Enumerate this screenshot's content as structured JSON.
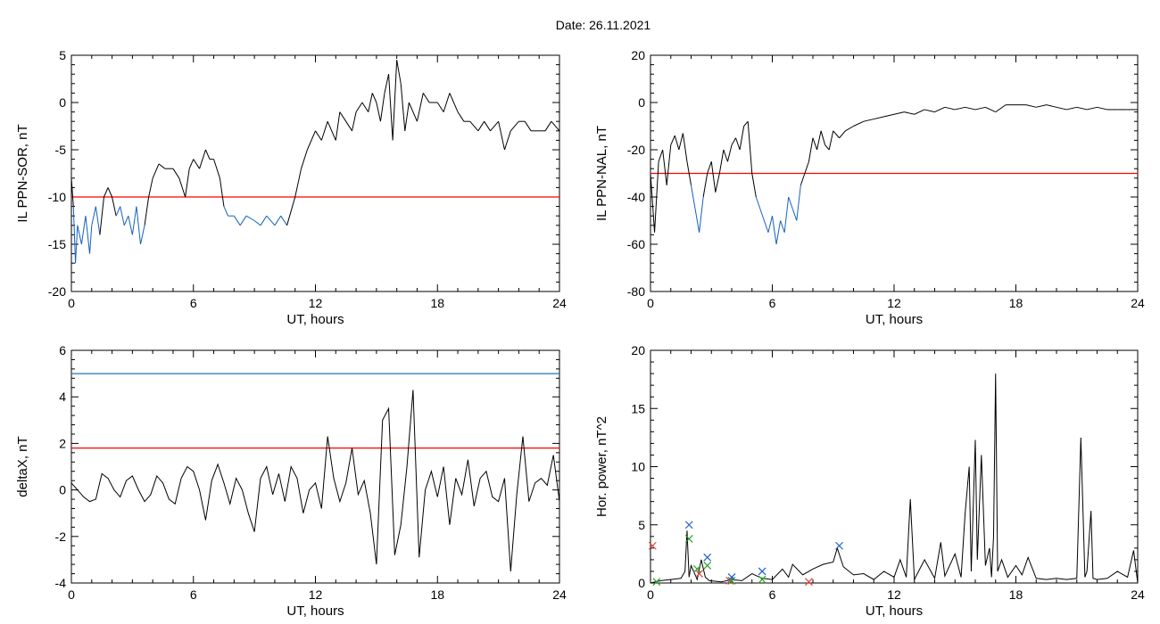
{
  "header": {
    "date_text": "Date:  26.11.2021"
  },
  "colors": {
    "trace": "#000000",
    "threshold_red": "#ff0000",
    "threshold_blue": "#1f77b4",
    "below_threshold": "#1560bd",
    "marker_red": "#e0403a",
    "marker_green": "#2ca02c",
    "marker_blue": "#1f5fcf"
  },
  "chart_data": [
    {
      "type": "line",
      "xlabel": "UT, hours",
      "ylabel": "IL PPN-SOR, nT",
      "xlim": [
        0,
        24
      ],
      "ylim": [
        -20,
        5
      ],
      "xticks": [
        0,
        6,
        12,
        18,
        24
      ],
      "yticks": [
        -20,
        -15,
        -10,
        -5,
        0,
        5
      ],
      "threshold": -10,
      "below_color": "blue",
      "series": [
        {
          "x": [
            0,
            0.1,
            0.2,
            0.3,
            0.5,
            0.7,
            0.9,
            1.0,
            1.2,
            1.4,
            1.6,
            1.8,
            2.0,
            2.2,
            2.4,
            2.6,
            2.8,
            3.0,
            3.2,
            3.4,
            3.6,
            3.8,
            4.0,
            4.3,
            4.6,
            5.0,
            5.3,
            5.6,
            5.8,
            6.0,
            6.3,
            6.6,
            6.8,
            7.0,
            7.3,
            7.5,
            7.7,
            8.0,
            8.3,
            8.6,
            9.0,
            9.3,
            9.6,
            10.0,
            10.3,
            10.6,
            11.0,
            11.3,
            11.6,
            12.0,
            12.3,
            12.6,
            13.0,
            13.2,
            13.5,
            13.8,
            14.0,
            14.3,
            14.6,
            14.8,
            15.0,
            15.2,
            15.4,
            15.6,
            15.8,
            16.0,
            16.2,
            16.4,
            16.6,
            16.8,
            17.0,
            17.3,
            17.6,
            18.0,
            18.3,
            18.6,
            19.0,
            19.3,
            19.6,
            20.0,
            20.3,
            20.6,
            21.0,
            21.3,
            21.6,
            22.0,
            22.3,
            22.6,
            23.0,
            23.3,
            23.6,
            24.0
          ],
          "y": [
            -8,
            -11,
            -17,
            -13,
            -15,
            -12,
            -16,
            -13,
            -11,
            -14,
            -10,
            -9,
            -10,
            -12,
            -11,
            -13,
            -12,
            -14,
            -11,
            -15,
            -13,
            -10,
            -8,
            -6.5,
            -7,
            -7,
            -8,
            -10,
            -7,
            -6,
            -7,
            -5,
            -6,
            -6,
            -8,
            -11,
            -12,
            -12,
            -13,
            -12,
            -12.5,
            -13,
            -12,
            -13,
            -12,
            -13,
            -10,
            -7,
            -5,
            -3,
            -4,
            -2,
            -4,
            -1,
            -2,
            -3,
            -1,
            0,
            -1,
            1,
            0,
            -2,
            1,
            3,
            -4,
            4.5,
            2,
            -3,
            0,
            -1,
            -2,
            1,
            0,
            0,
            -1,
            1,
            -1,
            -2,
            -2,
            -3,
            -2,
            -3,
            -2,
            -5,
            -3,
            -2,
            -2,
            -3,
            -3,
            -3,
            -2,
            -3
          ]
        }
      ]
    },
    {
      "type": "line",
      "xlabel": "UT, hours",
      "ylabel": "IL PPN-NAL, nT",
      "xlim": [
        0,
        24
      ],
      "ylim": [
        -80,
        20
      ],
      "xticks": [
        0,
        6,
        12,
        18,
        24
      ],
      "yticks": [
        -80,
        -60,
        -40,
        -20,
        0,
        20
      ],
      "threshold": -30,
      "below_color": "blue",
      "series": [
        {
          "x": [
            0,
            0.2,
            0.4,
            0.6,
            0.8,
            1.0,
            1.2,
            1.4,
            1.6,
            1.8,
            2.0,
            2.2,
            2.4,
            2.6,
            2.8,
            3.0,
            3.2,
            3.4,
            3.6,
            3.8,
            4.0,
            4.2,
            4.4,
            4.6,
            4.8,
            5.0,
            5.2,
            5.4,
            5.6,
            5.8,
            6.0,
            6.2,
            6.4,
            6.6,
            6.8,
            7.0,
            7.2,
            7.4,
            7.6,
            7.8,
            8.0,
            8.2,
            8.4,
            8.6,
            8.8,
            9.0,
            9.3,
            9.6,
            10.0,
            10.5,
            11.0,
            11.5,
            12.0,
            12.5,
            13.0,
            13.5,
            14.0,
            14.5,
            15.0,
            15.5,
            16.0,
            16.5,
            17.0,
            17.5,
            18.0,
            18.5,
            19.0,
            19.5,
            20.0,
            20.5,
            21.0,
            21.5,
            22.0,
            22.5,
            23.0,
            23.5,
            24.0
          ],
          "y": [
            -30,
            -55,
            -25,
            -20,
            -35,
            -18,
            -14,
            -20,
            -13,
            -25,
            -35,
            -45,
            -55,
            -40,
            -30,
            -25,
            -38,
            -30,
            -20,
            -25,
            -18,
            -15,
            -20,
            -10,
            -8,
            -30,
            -40,
            -45,
            -50,
            -55,
            -48,
            -60,
            -50,
            -55,
            -40,
            -45,
            -50,
            -35,
            -30,
            -25,
            -15,
            -20,
            -12,
            -18,
            -20,
            -12,
            -15,
            -12,
            -10,
            -8,
            -7,
            -6,
            -5,
            -4,
            -5,
            -3,
            -4,
            -2,
            -3,
            -2,
            -3,
            -2,
            -4,
            -1,
            -1,
            -1,
            -2,
            -1,
            -2,
            -3,
            -2,
            -3,
            -2,
            -3,
            -3,
            -3,
            -3
          ]
        }
      ]
    },
    {
      "type": "line",
      "xlabel": "UT, hours",
      "ylabel": "deltaX, nT",
      "xlim": [
        0,
        24
      ],
      "ylim": [
        -4,
        6
      ],
      "xticks": [
        0,
        6,
        12,
        18,
        24
      ],
      "yticks": [
        -4,
        -2,
        0,
        2,
        4,
        6
      ],
      "hlines": [
        {
          "y": 5,
          "color": "blue"
        },
        {
          "y": 1.8,
          "color": "red"
        }
      ],
      "series": [
        {
          "x": [
            0,
            0.3,
            0.6,
            0.9,
            1.2,
            1.5,
            1.8,
            2.1,
            2.4,
            2.7,
            3.0,
            3.3,
            3.6,
            3.9,
            4.2,
            4.5,
            4.8,
            5.1,
            5.4,
            5.7,
            6.0,
            6.3,
            6.6,
            6.9,
            7.2,
            7.5,
            7.8,
            8.1,
            8.4,
            8.7,
            9.0,
            9.3,
            9.6,
            9.9,
            10.2,
            10.5,
            10.8,
            11.1,
            11.4,
            11.7,
            12.0,
            12.3,
            12.6,
            12.9,
            13.2,
            13.5,
            13.8,
            14.1,
            14.4,
            14.7,
            15.0,
            15.3,
            15.6,
            15.9,
            16.2,
            16.5,
            16.8,
            17.1,
            17.4,
            17.7,
            18.0,
            18.3,
            18.6,
            18.9,
            19.2,
            19.5,
            19.8,
            20.1,
            20.4,
            20.7,
            21.0,
            21.3,
            21.6,
            21.9,
            22.2,
            22.5,
            22.8,
            23.1,
            23.4,
            23.7,
            24.0
          ],
          "y": [
            0.3,
            0,
            -0.3,
            -0.5,
            -0.4,
            0.7,
            0.5,
            0,
            -0.3,
            0.4,
            0.6,
            0,
            -0.5,
            -0.2,
            0.6,
            0.3,
            -0.4,
            -0.6,
            0.5,
            1,
            0.8,
            0,
            -1.3,
            0.4,
            1.1,
            0.3,
            -0.6,
            0.5,
            0,
            -1,
            -1.8,
            0.5,
            1,
            -0.2,
            0.7,
            -0.5,
            1,
            0.5,
            -1,
            0,
            0.3,
            -0.8,
            2.3,
            0.5,
            -0.5,
            0.3,
            1.8,
            -0.2,
            0.4,
            -1,
            -3.2,
            3,
            3.5,
            -2.8,
            -1.5,
            1,
            4.3,
            -2.9,
            0,
            0.8,
            -0.3,
            1,
            -1.5,
            0.5,
            -0.2,
            1.3,
            -0.7,
            0.5,
            0.8,
            -0.3,
            -0.5,
            0.5,
            -3.5,
            -0.2,
            2.3,
            -0.5,
            0.3,
            0.5,
            0.2,
            1.5,
            -0.5
          ]
        }
      ]
    },
    {
      "type": "line",
      "xlabel": "UT, hours",
      "ylabel": "Hor. power, nT^2",
      "xlim": [
        0,
        24
      ],
      "ylim": [
        0,
        20
      ],
      "xticks": [
        0,
        6,
        12,
        18,
        24
      ],
      "yticks": [
        0,
        5,
        10,
        15,
        20
      ],
      "series": [
        {
          "x": [
            0,
            0.5,
            1.0,
            1.5,
            1.7,
            1.8,
            1.9,
            2.0,
            2.3,
            2.5,
            2.7,
            2.9,
            3.5,
            4.0,
            4.5,
            5.0,
            5.5,
            6.0,
            6.5,
            6.8,
            7.0,
            7.5,
            8.0,
            8.5,
            9.0,
            9.2,
            9.5,
            10.0,
            10.5,
            11.0,
            11.5,
            12.0,
            12.3,
            12.6,
            12.8,
            13.0,
            13.5,
            14.0,
            14.3,
            14.5,
            15.0,
            15.3,
            15.5,
            15.7,
            15.8,
            16.0,
            16.1,
            16.3,
            16.5,
            16.7,
            16.8,
            16.9,
            17.0,
            17.1,
            17.3,
            17.6,
            18.0,
            18.3,
            18.6,
            19.0,
            19.5,
            20.0,
            20.5,
            21.0,
            21.2,
            21.4,
            21.5,
            21.7,
            21.8,
            22.0,
            22.5,
            23.0,
            23.5,
            23.8,
            24.0
          ],
          "y": [
            0,
            0.2,
            0.3,
            0.4,
            1,
            4.5,
            0.5,
            1.5,
            0.3,
            2,
            0.5,
            0.2,
            0.1,
            0.3,
            0.2,
            0.8,
            0.4,
            0.3,
            1.2,
            0.5,
            1.6,
            0.7,
            1.2,
            1.6,
            1.8,
            3,
            1.4,
            0.7,
            0.8,
            0.3,
            1,
            0.5,
            2,
            0.5,
            7.2,
            0.3,
            2,
            0.4,
            3.5,
            0.6,
            2.5,
            0.5,
            6,
            10,
            1,
            12.3,
            2,
            11,
            1.5,
            3,
            0.5,
            4,
            18,
            1,
            2,
            0.5,
            1.5,
            0.7,
            2.2,
            0.4,
            0.3,
            0.4,
            0.3,
            0.4,
            12.5,
            0.5,
            1,
            6.2,
            0.4,
            0.3,
            0.4,
            1,
            0.5,
            2.8,
            0
          ]
        }
      ],
      "markers": [
        {
          "color": "red",
          "x": [
            0.1,
            2.4,
            3.9,
            7.8
          ],
          "y": [
            3.2,
            0.8,
            0.2,
            0.1
          ]
        },
        {
          "color": "green",
          "x": [
            0.3,
            1.9,
            2.3,
            2.8,
            4.0,
            5.5
          ],
          "y": [
            0.1,
            3.8,
            1.2,
            1.5,
            0.2,
            0.3
          ]
        },
        {
          "color": "blue",
          "x": [
            1.9,
            2.8,
            4.0,
            5.5,
            9.3
          ],
          "y": [
            5.0,
            2.2,
            0.5,
            1.0,
            3.2
          ]
        }
      ]
    }
  ]
}
